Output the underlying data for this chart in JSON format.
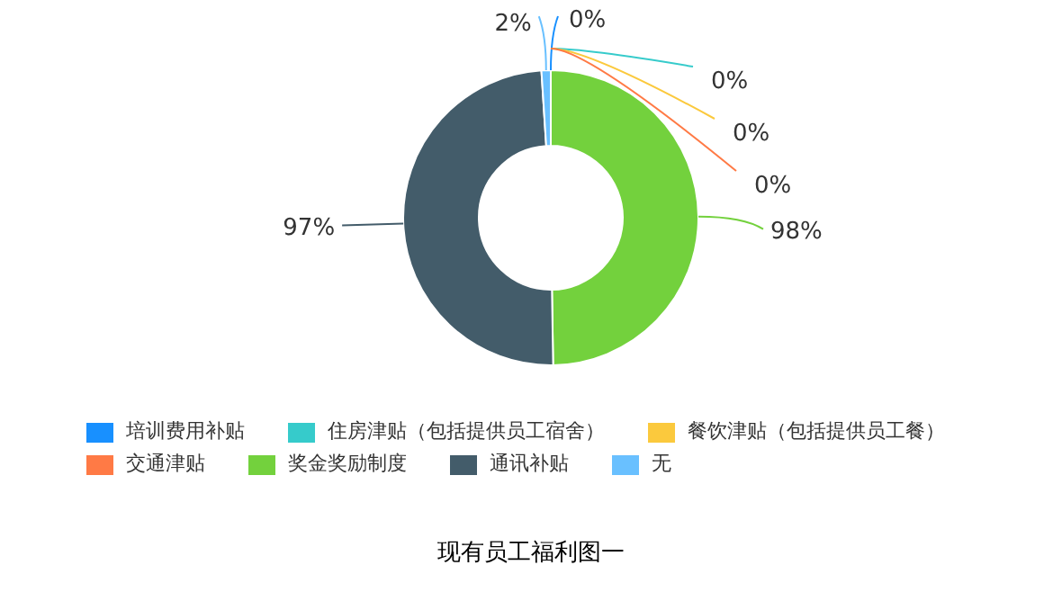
{
  "chart_data": {
    "type": "donut",
    "title": "现有员工福利图一",
    "categories": [
      "培训费用补贴",
      "住房津贴（包括提供员工宿舍）",
      "餐饮津贴（包括提供员工餐）",
      "交通津贴",
      "奖金奖励制度",
      "通讯补贴",
      "无"
    ],
    "values": [
      0,
      0,
      0,
      0,
      98,
      97,
      2
    ],
    "colors": [
      "#1890ff",
      "#36cbcb",
      "#fbc93d",
      "#ff7a45",
      "#73d13d",
      "#435c6a",
      "#69c0ff"
    ],
    "value_labels": [
      "0%",
      "0%",
      "0%",
      "0%",
      "98%",
      "97%",
      "2%"
    ],
    "legend": "bottom"
  }
}
